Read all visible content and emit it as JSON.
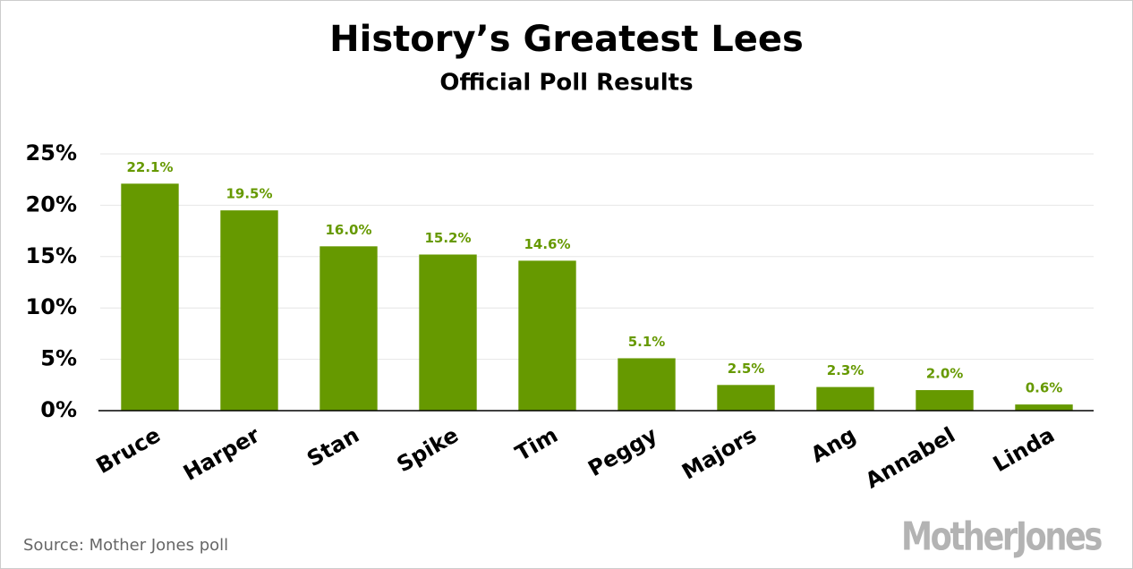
{
  "chart_data": {
    "type": "bar",
    "title": "History’s Greatest Lees",
    "subtitle": "Official Poll Results",
    "categories": [
      "Bruce",
      "Harper",
      "Stan",
      "Spike",
      "Tim",
      "Peggy",
      "Majors",
      "Ang",
      "Annabel",
      "Linda"
    ],
    "values": [
      22.1,
      19.5,
      16.0,
      15.2,
      14.6,
      5.1,
      2.5,
      2.3,
      2.0,
      0.6
    ],
    "value_labels": [
      "22.1%",
      "19.5%",
      "16.0%",
      "15.2%",
      "14.6%",
      "5.1%",
      "2.5%",
      "2.3%",
      "2.0%",
      "0.6%"
    ],
    "color": "#669900",
    "ylim": [
      0,
      25
    ],
    "yticks": [
      {
        "value": 0,
        "label": "0%"
      },
      {
        "value": 5,
        "label": "5%"
      },
      {
        "value": 10,
        "label": "10%"
      },
      {
        "value": 15,
        "label": "15%"
      },
      {
        "value": 20,
        "label": "20%"
      },
      {
        "value": 25,
        "label": "25%"
      }
    ],
    "grid": true
  },
  "footer": {
    "source": "Source: Mother Jones poll",
    "logo": "MotherJones"
  }
}
